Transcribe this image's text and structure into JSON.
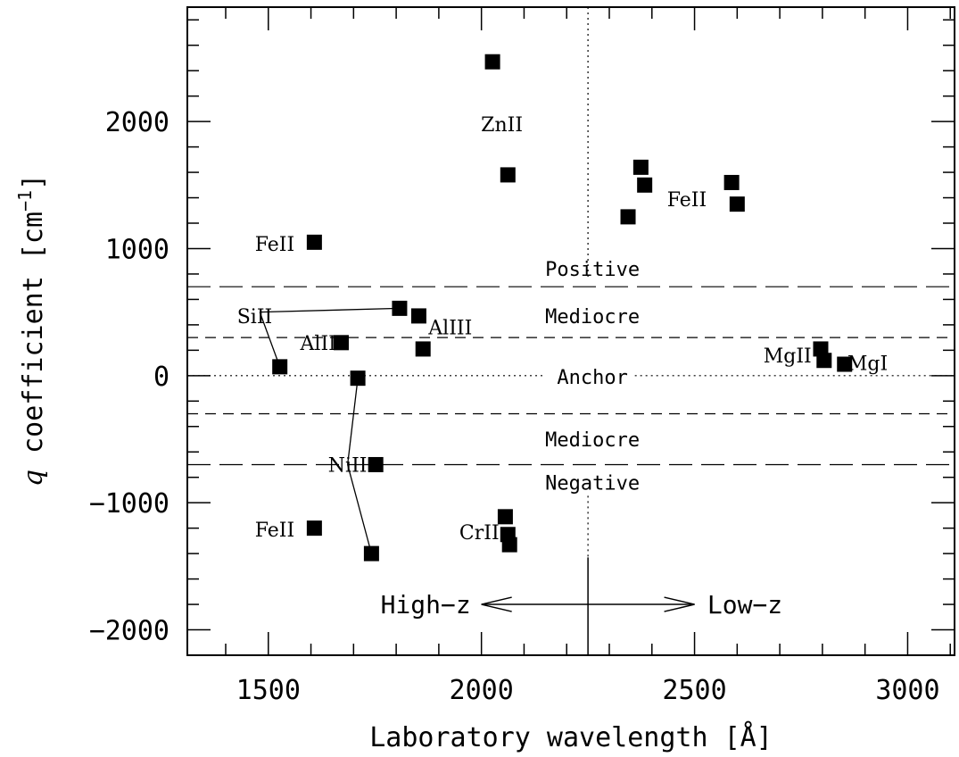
{
  "chart_data": {
    "type": "scatter",
    "xlabel": "Laboratory wavelength [Å]",
    "ylabel_italic": "q",
    "ylabel_rest": " coefficient [cm",
    "ylabel_sup": "−1",
    "ylabel_close": "]",
    "xlim": [
      1310,
      3110
    ],
    "ylim": [
      -2200,
      2900
    ],
    "x_ticks": [
      1500,
      2000,
      2500,
      3000
    ],
    "x_tick_labels": [
      "1500",
      "2000",
      "2500",
      "3000"
    ],
    "x_minor_step": 100,
    "y_ticks": [
      -2000,
      -1000,
      0,
      1000,
      2000
    ],
    "y_tick_labels": [
      "−2000",
      "−1000",
      "0",
      "1000",
      "2000"
    ],
    "y_minor_step": 200,
    "grid": false,
    "points": [
      {
        "x": 2026,
        "y": 2470
      },
      {
        "x": 2062,
        "y": 1580
      },
      {
        "x": 2374,
        "y": 1640
      },
      {
        "x": 2383,
        "y": 1500
      },
      {
        "x": 2344,
        "y": 1250
      },
      {
        "x": 2587,
        "y": 1520
      },
      {
        "x": 2600,
        "y": 1350
      },
      {
        "x": 1608,
        "y": 1050
      },
      {
        "x": 1808,
        "y": 530
      },
      {
        "x": 1853,
        "y": 470
      },
      {
        "x": 1863,
        "y": 210
      },
      {
        "x": 1671,
        "y": 260
      },
      {
        "x": 1527,
        "y": 70
      },
      {
        "x": 1710,
        "y": -20
      },
      {
        "x": 1752,
        "y": -700
      },
      {
        "x": 1742,
        "y": -1400
      },
      {
        "x": 1608,
        "y": -1200
      },
      {
        "x": 2056,
        "y": -1110
      },
      {
        "x": 2062,
        "y": -1250
      },
      {
        "x": 2066,
        "y": -1330
      },
      {
        "x": 2796,
        "y": 210
      },
      {
        "x": 2804,
        "y": 120
      },
      {
        "x": 2852,
        "y": 90
      }
    ],
    "reference_lines": [
      {
        "y": 700,
        "style": "long-dash"
      },
      {
        "y": 300,
        "style": "short-dash"
      },
      {
        "y": -300,
        "style": "short-dash"
      },
      {
        "y": -700,
        "style": "long-dash"
      }
    ],
    "anchor_line_y": 0,
    "divider_x": 2250,
    "ion_labels": [
      {
        "text": "ZnII",
        "x": 2048,
        "y": 1980
      },
      {
        "text": "FeII",
        "x": 2482,
        "y": 1390
      },
      {
        "text": "FeII",
        "x": 1515,
        "y": 1040
      },
      {
        "text": "SiII",
        "x": 1468,
        "y": 470
      },
      {
        "text": "AlIII",
        "x": 1927,
        "y": 380
      },
      {
        "text": "AlII",
        "x": 1617,
        "y": 260
      },
      {
        "text": "MgII",
        "x": 2718,
        "y": 160
      },
      {
        "text": "MgI",
        "x": 2906,
        "y": 100
      },
      {
        "text": "NiII",
        "x": 1686,
        "y": -700
      },
      {
        "text": "FeII",
        "x": 1515,
        "y": -1210
      },
      {
        "text": "CrII",
        "x": 1995,
        "y": -1230
      }
    ],
    "leader_lines": [
      {
        "x1": 1480,
        "y1": 500,
        "x2": 1808,
        "y2": 530
      },
      {
        "x1": 1480,
        "y1": 500,
        "x2": 1527,
        "y2": 70
      },
      {
        "x1": 1686,
        "y1": -700,
        "x2": 1710,
        "y2": -20
      },
      {
        "x1": 1686,
        "y1": -700,
        "x2": 1742,
        "y2": -1400
      }
    ],
    "region_labels": [
      {
        "text": "Positive",
        "x": 2250,
        "y": 840
      },
      {
        "text": "Mediocre",
        "x": 2250,
        "y": 470
      },
      {
        "text": "Anchor",
        "x": 2250,
        "y": -10
      },
      {
        "text": "Mediocre",
        "x": 2250,
        "y": -500
      },
      {
        "text": "Negative",
        "x": 2250,
        "y": -840
      }
    ],
    "direction_labels": {
      "left": "High−z",
      "right": "Low−z"
    }
  }
}
